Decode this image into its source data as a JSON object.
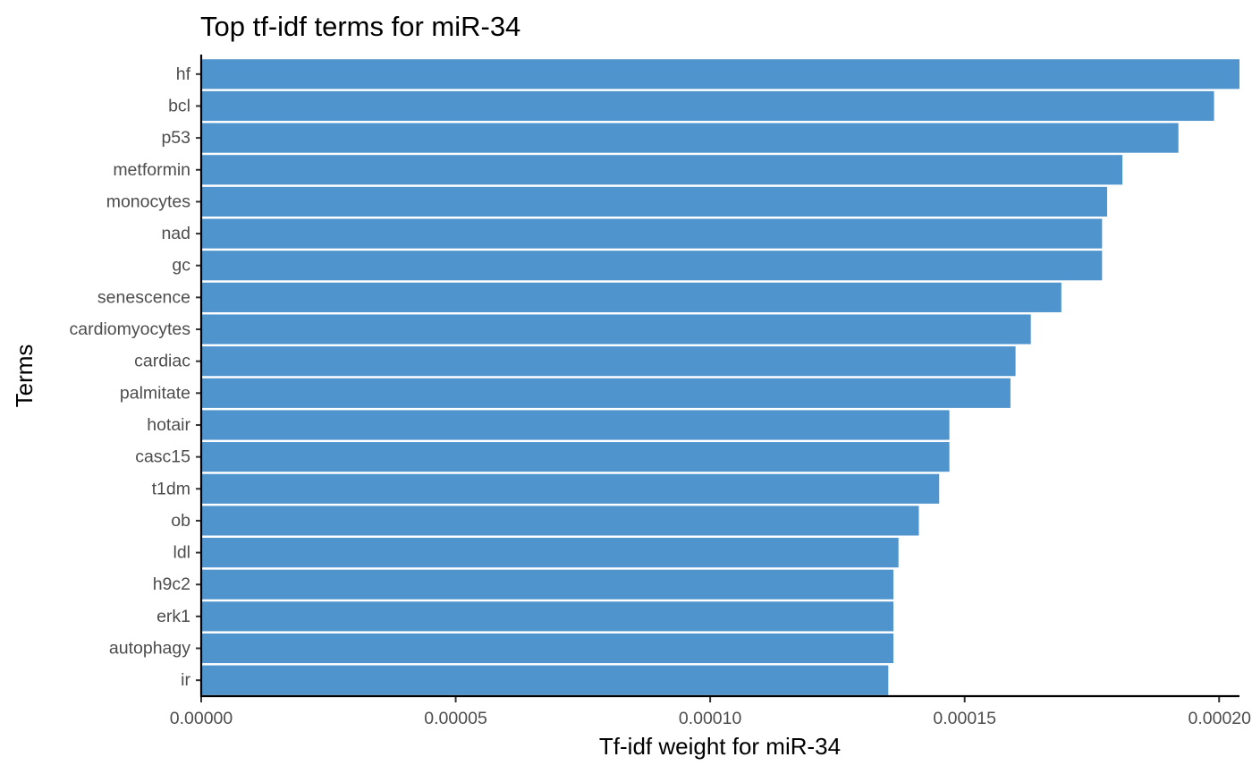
{
  "chart_data": {
    "type": "bar",
    "orientation": "horizontal",
    "title": "Top tf-idf terms for miR-34",
    "xlabel": "Tf-idf weight for miR-34",
    "ylabel": "Terms",
    "xlim": [
      0,
      0.000204
    ],
    "xticks": [
      0,
      5e-05,
      0.0001,
      0.00015,
      0.0002
    ],
    "xtick_labels": [
      "0.00000",
      "0.00005",
      "0.00010",
      "0.00015",
      "0.00020"
    ],
    "bar_color": "#4f94cd",
    "grid": false,
    "legend": "none",
    "categories": [
      "hf",
      "bcl",
      "p53",
      "metformin",
      "monocytes",
      "nad",
      "gc",
      "senescence",
      "cardiomyocytes",
      "cardiac",
      "palmitate",
      "hotair",
      "casc15",
      "t1dm",
      "ob",
      "ldl",
      "h9c2",
      "erk1",
      "autophagy",
      "ir"
    ],
    "values": [
      0.000204,
      0.000199,
      0.000192,
      0.000181,
      0.000178,
      0.000177,
      0.000177,
      0.000169,
      0.000163,
      0.00016,
      0.000159,
      0.000147,
      0.000147,
      0.000145,
      0.000141,
      0.000137,
      0.000136,
      0.000136,
      0.000136,
      0.000135
    ]
  }
}
